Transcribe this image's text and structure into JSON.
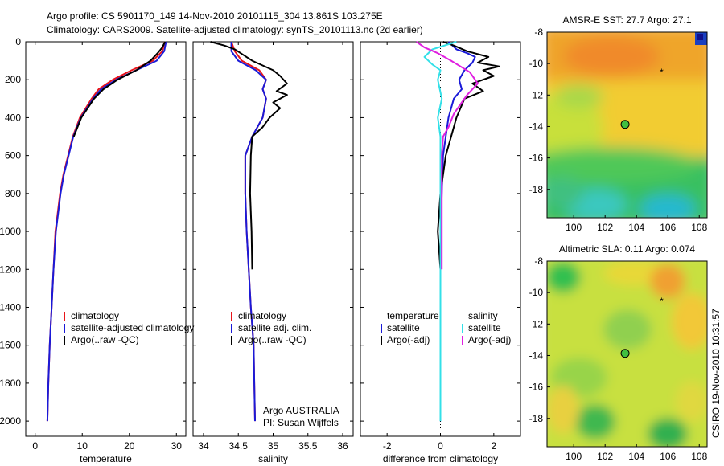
{
  "title_line1": "Argo profile: CS 5901170_149 14-Nov-2010 20101115_304 13.861S 103.275E",
  "title_line2": "Climatology: CARS2009. Satellite-adjusted climatology: synTS_20101113.nc (2d earlier)",
  "side_stamp": "CSIRO 19-Nov-2010 10:31:57",
  "colors": {
    "climatology": "#e8141a",
    "satellite": "#1a1ad8",
    "argo": "#000000",
    "salinity_sat": "#33e0e8",
    "salinity_argo": "#e020e0"
  },
  "chart_data": [
    {
      "type": "line",
      "id": "temperature",
      "xlabel": "temperature",
      "ylabel": "",
      "xlim": [
        -2,
        32
      ],
      "ylim": [
        2080,
        0
      ],
      "y_reversed": true,
      "xticks": [
        "0",
        "10",
        "20",
        "30"
      ],
      "yticks": [
        "0",
        "200",
        "400",
        "600",
        "800",
        "1000",
        "1200",
        "1400",
        "1600",
        "1800",
        "2000"
      ],
      "legend": [
        "climatology",
        "satellite-adjusted climatology",
        "Argo(..raw -QC)"
      ],
      "series": [
        {
          "name": "climatology",
          "color": "climatology",
          "points": [
            [
              27.5,
              0
            ],
            [
              27.0,
              50
            ],
            [
              25.0,
              100
            ],
            [
              20.5,
              150
            ],
            [
              16.5,
              200
            ],
            [
              13.5,
              250
            ],
            [
              12.0,
              300
            ],
            [
              9.5,
              400
            ],
            [
              8.0,
              500
            ],
            [
              7.0,
              600
            ],
            [
              6.0,
              700
            ],
            [
              5.3,
              800
            ],
            [
              4.8,
              900
            ],
            [
              4.3,
              1000
            ],
            [
              3.9,
              1200
            ],
            [
              3.5,
              1400
            ],
            [
              3.1,
              1600
            ],
            [
              2.8,
              1800
            ],
            [
              2.6,
              2000
            ]
          ]
        },
        {
          "name": "satellite-adjusted climatology",
          "color": "satellite",
          "points": [
            [
              27.8,
              0
            ],
            [
              27.4,
              50
            ],
            [
              25.8,
              100
            ],
            [
              21.5,
              150
            ],
            [
              17.2,
              200
            ],
            [
              14.0,
              250
            ],
            [
              12.3,
              300
            ],
            [
              9.7,
              400
            ],
            [
              8.1,
              500
            ],
            [
              7.1,
              600
            ],
            [
              6.1,
              700
            ],
            [
              5.4,
              800
            ],
            [
              4.9,
              900
            ],
            [
              4.4,
              1000
            ],
            [
              3.9,
              1200
            ],
            [
              3.5,
              1400
            ],
            [
              3.1,
              1600
            ],
            [
              2.8,
              1800
            ],
            [
              2.6,
              2000
            ]
          ]
        },
        {
          "name": "Argo(..raw -QC)",
          "color": "argo",
          "points": [
            [
              27.6,
              0
            ],
            [
              27.0,
              30
            ],
            [
              26.0,
              60
            ],
            [
              24.5,
              100
            ],
            [
              21.5,
              150
            ],
            [
              17.5,
              200
            ],
            [
              14.5,
              250
            ],
            [
              12.5,
              300
            ],
            [
              9.8,
              400
            ],
            [
              8.2,
              500
            ]
          ]
        }
      ]
    },
    {
      "type": "line",
      "id": "salinity",
      "xlabel": "salinity",
      "ylabel": "",
      "xlim": [
        33.85,
        36.15
      ],
      "ylim": [
        2080,
        0
      ],
      "y_reversed": true,
      "xticks": [
        "34",
        "34.5",
        "35",
        "35.5",
        "36"
      ],
      "legend": [
        "climatology",
        "satellite adj. clim.",
        "Argo(..raw -QC)"
      ],
      "annotations": [
        "Argo AUSTRALIA",
        "PI: Susan Wijffels"
      ],
      "series": [
        {
          "name": "climatology",
          "color": "climatology",
          "points": [
            [
              34.4,
              0
            ],
            [
              34.45,
              50
            ],
            [
              34.55,
              100
            ],
            [
              34.8,
              150
            ],
            [
              34.9,
              200
            ],
            [
              34.85,
              250
            ],
            [
              34.9,
              300
            ],
            [
              34.85,
              400
            ],
            [
              34.7,
              500
            ],
            [
              34.6,
              600
            ],
            [
              34.6,
              800
            ],
            [
              34.62,
              1000
            ],
            [
              34.65,
              1200
            ],
            [
              34.68,
              1400
            ],
            [
              34.72,
              1600
            ],
            [
              34.73,
              1800
            ],
            [
              34.74,
              2000
            ]
          ]
        },
        {
          "name": "satellite adj. clim.",
          "color": "satellite",
          "points": [
            [
              34.4,
              0
            ],
            [
              34.4,
              50
            ],
            [
              34.5,
              100
            ],
            [
              34.75,
              150
            ],
            [
              34.9,
              200
            ],
            [
              34.85,
              250
            ],
            [
              34.9,
              300
            ],
            [
              34.85,
              400
            ],
            [
              34.7,
              500
            ],
            [
              34.6,
              600
            ],
            [
              34.6,
              800
            ],
            [
              34.62,
              1000
            ],
            [
              34.65,
              1200
            ],
            [
              34.68,
              1400
            ],
            [
              34.72,
              1600
            ],
            [
              34.73,
              1800
            ],
            [
              34.74,
              2000
            ]
          ]
        },
        {
          "name": "Argo(..raw -QC)",
          "color": "argo",
          "points": [
            [
              34.1,
              0
            ],
            [
              34.3,
              20
            ],
            [
              34.45,
              40
            ],
            [
              34.7,
              100
            ],
            [
              35.0,
              150
            ],
            [
              35.1,
              180
            ],
            [
              35.2,
              220
            ],
            [
              35.05,
              260
            ],
            [
              35.2,
              280
            ],
            [
              35.0,
              320
            ],
            [
              35.1,
              350
            ],
            [
              34.95,
              400
            ],
            [
              34.85,
              450
            ],
            [
              34.7,
              500
            ],
            [
              34.68,
              600
            ],
            [
              34.67,
              800
            ],
            [
              34.69,
              1000
            ],
            [
              34.7,
              1200
            ]
          ]
        }
      ]
    },
    {
      "type": "line",
      "id": "difference",
      "xlabel": "difference from climatology",
      "ylabel": "",
      "xlim": [
        -3,
        3
      ],
      "ylim": [
        2080,
        0
      ],
      "y_reversed": true,
      "xticks": [
        "-2",
        "0",
        "2"
      ],
      "legend_left": {
        "title": "temperature",
        "items": [
          "satellite",
          "Argo(-adj)"
        ]
      },
      "legend_right": {
        "title": "salinity",
        "items": [
          "satellite",
          "Argo(-adj)"
        ]
      },
      "series": [
        {
          "name": "temperature satellite",
          "color": "satellite",
          "points": [
            [
              0.3,
              0
            ],
            [
              0.6,
              40
            ],
            [
              1.0,
              60
            ],
            [
              1.3,
              80
            ],
            [
              1.2,
              110
            ],
            [
              0.9,
              150
            ],
            [
              0.7,
              200
            ],
            [
              0.8,
              250
            ],
            [
              0.5,
              300
            ],
            [
              0.3,
              400
            ],
            [
              0.2,
              500
            ],
            [
              0.1,
              600
            ],
            [
              0.05,
              800
            ],
            [
              0.0,
              1000
            ],
            [
              0.0,
              2000
            ]
          ]
        },
        {
          "name": "temperature Argo(-adj)",
          "color": "argo",
          "points": [
            [
              0.1,
              0
            ],
            [
              0.5,
              20
            ],
            [
              1.0,
              50
            ],
            [
              1.8,
              80
            ],
            [
              1.4,
              110
            ],
            [
              2.2,
              130
            ],
            [
              1.6,
              150
            ],
            [
              2.0,
              180
            ],
            [
              1.2,
              220
            ],
            [
              1.6,
              260
            ],
            [
              0.9,
              300
            ],
            [
              0.6,
              400
            ],
            [
              0.4,
              500
            ],
            [
              0.2,
              600
            ],
            [
              0.0,
              800
            ],
            [
              -0.1,
              1000
            ],
            [
              0.0,
              1200
            ]
          ]
        },
        {
          "name": "salinity satellite",
          "color": "salinity_sat",
          "points": [
            [
              0.6,
              0
            ],
            [
              -0.3,
              40
            ],
            [
              -0.6,
              80
            ],
            [
              -0.3,
              120
            ],
            [
              0.0,
              150
            ],
            [
              -0.1,
              200
            ],
            [
              0.05,
              300
            ],
            [
              -0.1,
              400
            ],
            [
              0.0,
              500
            ],
            [
              0.0,
              800
            ],
            [
              0.0,
              2000
            ]
          ]
        },
        {
          "name": "salinity Argo(-adj)",
          "color": "salinity_argo",
          "points": [
            [
              -0.9,
              0
            ],
            [
              -0.6,
              30
            ],
            [
              -0.1,
              60
            ],
            [
              0.4,
              100
            ],
            [
              1.1,
              160
            ],
            [
              1.2,
              180
            ],
            [
              1.4,
              220
            ],
            [
              1.0,
              280
            ],
            [
              0.8,
              320
            ],
            [
              0.5,
              380
            ],
            [
              0.3,
              450
            ],
            [
              0.1,
              500
            ],
            [
              0.05,
              600
            ],
            [
              0.05,
              800
            ],
            [
              0.05,
              1000
            ],
            [
              0.05,
              1200
            ]
          ]
        }
      ]
    },
    {
      "type": "heatmap",
      "id": "sst_map",
      "title": "AMSR-E SST: 27.7 Argo: 27.1",
      "xlim": [
        98.3,
        108.5
      ],
      "ylim": [
        -19.8,
        -8
      ],
      "xticks": [
        "100",
        "102",
        "104",
        "106",
        "108"
      ],
      "yticks": [
        "-8",
        "-10",
        "-12",
        "-14",
        "-16",
        "-18"
      ],
      "markers": [
        {
          "kind": "circle",
          "lon": 103.275,
          "lat": -13.861
        },
        {
          "kind": "star",
          "lon": 105.6,
          "lat": -10.5
        }
      ]
    },
    {
      "type": "heatmap",
      "id": "sla_map",
      "title": "Altimetric SLA: 0.11 Argo: 0.074",
      "xlim": [
        98.3,
        108.5
      ],
      "ylim": [
        -19.8,
        -8
      ],
      "xticks": [
        "100",
        "102",
        "104",
        "106",
        "108"
      ],
      "yticks": [
        "-8",
        "-10",
        "-12",
        "-14",
        "-16",
        "-18"
      ],
      "markers": [
        {
          "kind": "circle",
          "lon": 103.275,
          "lat": -13.861
        },
        {
          "kind": "star",
          "lon": 105.6,
          "lat": -10.5
        }
      ]
    }
  ]
}
